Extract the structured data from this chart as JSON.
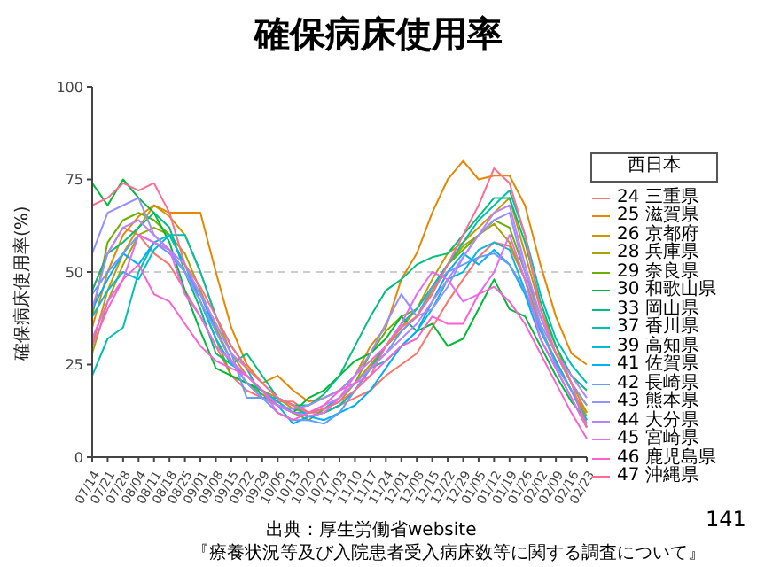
{
  "chart_data": {
    "type": "line",
    "title": "確保病床使用率",
    "ylabel": "確保病床使用率(%)",
    "legend_title": "西日本",
    "legend": "right",
    "categories": [
      "07/14",
      "07/21",
      "07/28",
      "08/04",
      "08/11",
      "08/18",
      "08/25",
      "09/01",
      "09/08",
      "09/15",
      "09/22",
      "09/29",
      "10/06",
      "10/13",
      "10/20",
      "10/27",
      "11/03",
      "11/10",
      "11/17",
      "11/24",
      "12/01",
      "12/08",
      "12/15",
      "12/22",
      "12/29",
      "01/05",
      "01/12",
      "01/19",
      "01/26",
      "02/02",
      "02/09",
      "02/16",
      "02/23"
    ],
    "ylim": [
      0,
      100
    ],
    "yticks": [
      0,
      25,
      50,
      75,
      100
    ],
    "ref_lines": [
      {
        "axis": "y",
        "value": 50,
        "color": "#cccccc",
        "line_style": "dashed"
      }
    ],
    "annotations": [
      "出典：厚生労働省website",
      "『療養状況等及び入院患者受入病床数等に関する調査について』",
      "141"
    ],
    "series": [
      {
        "name": "24 三重県",
        "color": "#F8766D",
        "values": [
          45,
          55,
          62,
          60,
          55,
          52,
          45,
          38,
          30,
          22,
          18,
          16,
          15,
          15,
          12,
          12,
          14,
          16,
          18,
          22,
          25,
          28,
          35,
          42,
          48,
          54,
          58,
          57,
          48,
          35,
          25,
          18,
          12
        ]
      },
      {
        "name": "25 滋賀県",
        "color": "#E58700",
        "values": [
          35,
          50,
          60,
          65,
          68,
          66,
          66,
          66,
          50,
          35,
          25,
          20,
          22,
          18,
          15,
          16,
          18,
          22,
          30,
          35,
          48,
          55,
          66,
          75,
          80,
          75,
          76,
          76,
          68,
          52,
          38,
          28,
          25
        ]
      },
      {
        "name": "26 京都府",
        "color": "#C99800",
        "values": [
          30,
          45,
          55,
          62,
          68,
          65,
          60,
          50,
          38,
          28,
          22,
          18,
          16,
          13,
          12,
          13,
          15,
          20,
          25,
          30,
          35,
          40,
          48,
          55,
          58,
          62,
          66,
          70,
          55,
          40,
          30,
          20,
          12
        ]
      },
      {
        "name": "28 兵庫県",
        "color": "#A3A500",
        "values": [
          28,
          42,
          52,
          60,
          62,
          60,
          55,
          45,
          35,
          26,
          20,
          18,
          15,
          12,
          11,
          12,
          14,
          18,
          24,
          30,
          34,
          38,
          45,
          52,
          57,
          60,
          63,
          58,
          48,
          35,
          26,
          18,
          11
        ]
      },
      {
        "name": "29 奈良県",
        "color": "#6BB100",
        "values": [
          38,
          58,
          64,
          66,
          64,
          60,
          52,
          42,
          32,
          22,
          20,
          17,
          14,
          12,
          10,
          13,
          16,
          20,
          28,
          34,
          38,
          40,
          46,
          52,
          56,
          60,
          64,
          62,
          50,
          38,
          28,
          20,
          14
        ]
      },
      {
        "name": "30 和歌山県",
        "color": "#00BA38",
        "values": [
          74,
          68,
          75,
          70,
          66,
          58,
          45,
          34,
          24,
          22,
          20,
          18,
          14,
          12,
          16,
          18,
          22,
          26,
          28,
          32,
          38,
          34,
          36,
          30,
          32,
          40,
          48,
          40,
          38,
          30,
          22,
          15,
          10
        ]
      },
      {
        "name": "33 岡山県",
        "color": "#00BF7D",
        "values": [
          45,
          55,
          58,
          62,
          66,
          62,
          50,
          40,
          28,
          25,
          28,
          22,
          16,
          14,
          14,
          17,
          22,
          30,
          38,
          45,
          48,
          52,
          54,
          55,
          60,
          65,
          70,
          70,
          58,
          42,
          30,
          22,
          18
        ]
      },
      {
        "name": "37 香川県",
        "color": "#00C0AF",
        "values": [
          22,
          32,
          35,
          50,
          58,
          60,
          60,
          50,
          38,
          30,
          24,
          16,
          16,
          14,
          11,
          12,
          14,
          18,
          24,
          30,
          36,
          40,
          46,
          52,
          58,
          64,
          68,
          72,
          60,
          44,
          32,
          25,
          20
        ]
      },
      {
        "name": "39 高知県",
        "color": "#00BCD8",
        "values": [
          38,
          45,
          50,
          48,
          56,
          60,
          52,
          42,
          32,
          25,
          22,
          18,
          15,
          12,
          12,
          13,
          16,
          20,
          24,
          26,
          30,
          34,
          40,
          48,
          50,
          56,
          58,
          56,
          45,
          34,
          26,
          18,
          10
        ]
      },
      {
        "name": "41 佐賀県",
        "color": "#00B0F6",
        "values": [
          40,
          48,
          55,
          52,
          58,
          56,
          50,
          44,
          34,
          26,
          20,
          16,
          14,
          9,
          11,
          10,
          12,
          14,
          18,
          24,
          30,
          34,
          42,
          50,
          55,
          52,
          56,
          52,
          44,
          32,
          24,
          16,
          8
        ]
      },
      {
        "name": "42 長崎県",
        "color": "#619CFF",
        "values": [
          44,
          50,
          55,
          60,
          58,
          55,
          50,
          44,
          36,
          28,
          16,
          16,
          12,
          10,
          10,
          9,
          12,
          18,
          24,
          28,
          34,
          38,
          46,
          50,
          52,
          54,
          55,
          52,
          45,
          35,
          25,
          18,
          9
        ]
      },
      {
        "name": "43 熊本県",
        "color": "#9590FF",
        "values": [
          55,
          66,
          68,
          70,
          60,
          56,
          50,
          42,
          34,
          26,
          20,
          16,
          14,
          13,
          14,
          16,
          18,
          22,
          28,
          36,
          44,
          38,
          40,
          46,
          54,
          60,
          64,
          66,
          50,
          36,
          28,
          20,
          14
        ]
      },
      {
        "name": "44 大分県",
        "color": "#B983FF",
        "values": [
          40,
          55,
          62,
          64,
          60,
          56,
          52,
          44,
          36,
          28,
          24,
          20,
          16,
          14,
          12,
          14,
          16,
          20,
          24,
          28,
          32,
          36,
          42,
          48,
          54,
          60,
          66,
          68,
          52,
          38,
          28,
          22,
          16
        ]
      },
      {
        "name": "45 宮崎県",
        "color": "#E76BF3",
        "values": [
          32,
          42,
          48,
          60,
          58,
          56,
          44,
          38,
          30,
          26,
          22,
          18,
          14,
          12,
          11,
          12,
          16,
          22,
          26,
          30,
          36,
          44,
          50,
          48,
          42,
          44,
          50,
          60,
          48,
          32,
          24,
          16,
          8
        ]
      },
      {
        "name": "46 鹿児島県",
        "color": "#FD61D1",
        "values": [
          30,
          40,
          48,
          52,
          44,
          42,
          36,
          30,
          26,
          24,
          22,
          18,
          12,
          10,
          12,
          14,
          18,
          20,
          22,
          26,
          30,
          32,
          38,
          36,
          36,
          44,
          46,
          42,
          36,
          28,
          20,
          12,
          5
        ]
      },
      {
        "name": "47 沖縄県",
        "color": "#FF6C91",
        "values": [
          68,
          70,
          74,
          72,
          74,
          66,
          52,
          46,
          38,
          30,
          24,
          20,
          16,
          14,
          12,
          13,
          15,
          18,
          22,
          30,
          35,
          38,
          44,
          52,
          60,
          68,
          78,
          74,
          60,
          40,
          28,
          20,
          8
        ]
      }
    ]
  }
}
